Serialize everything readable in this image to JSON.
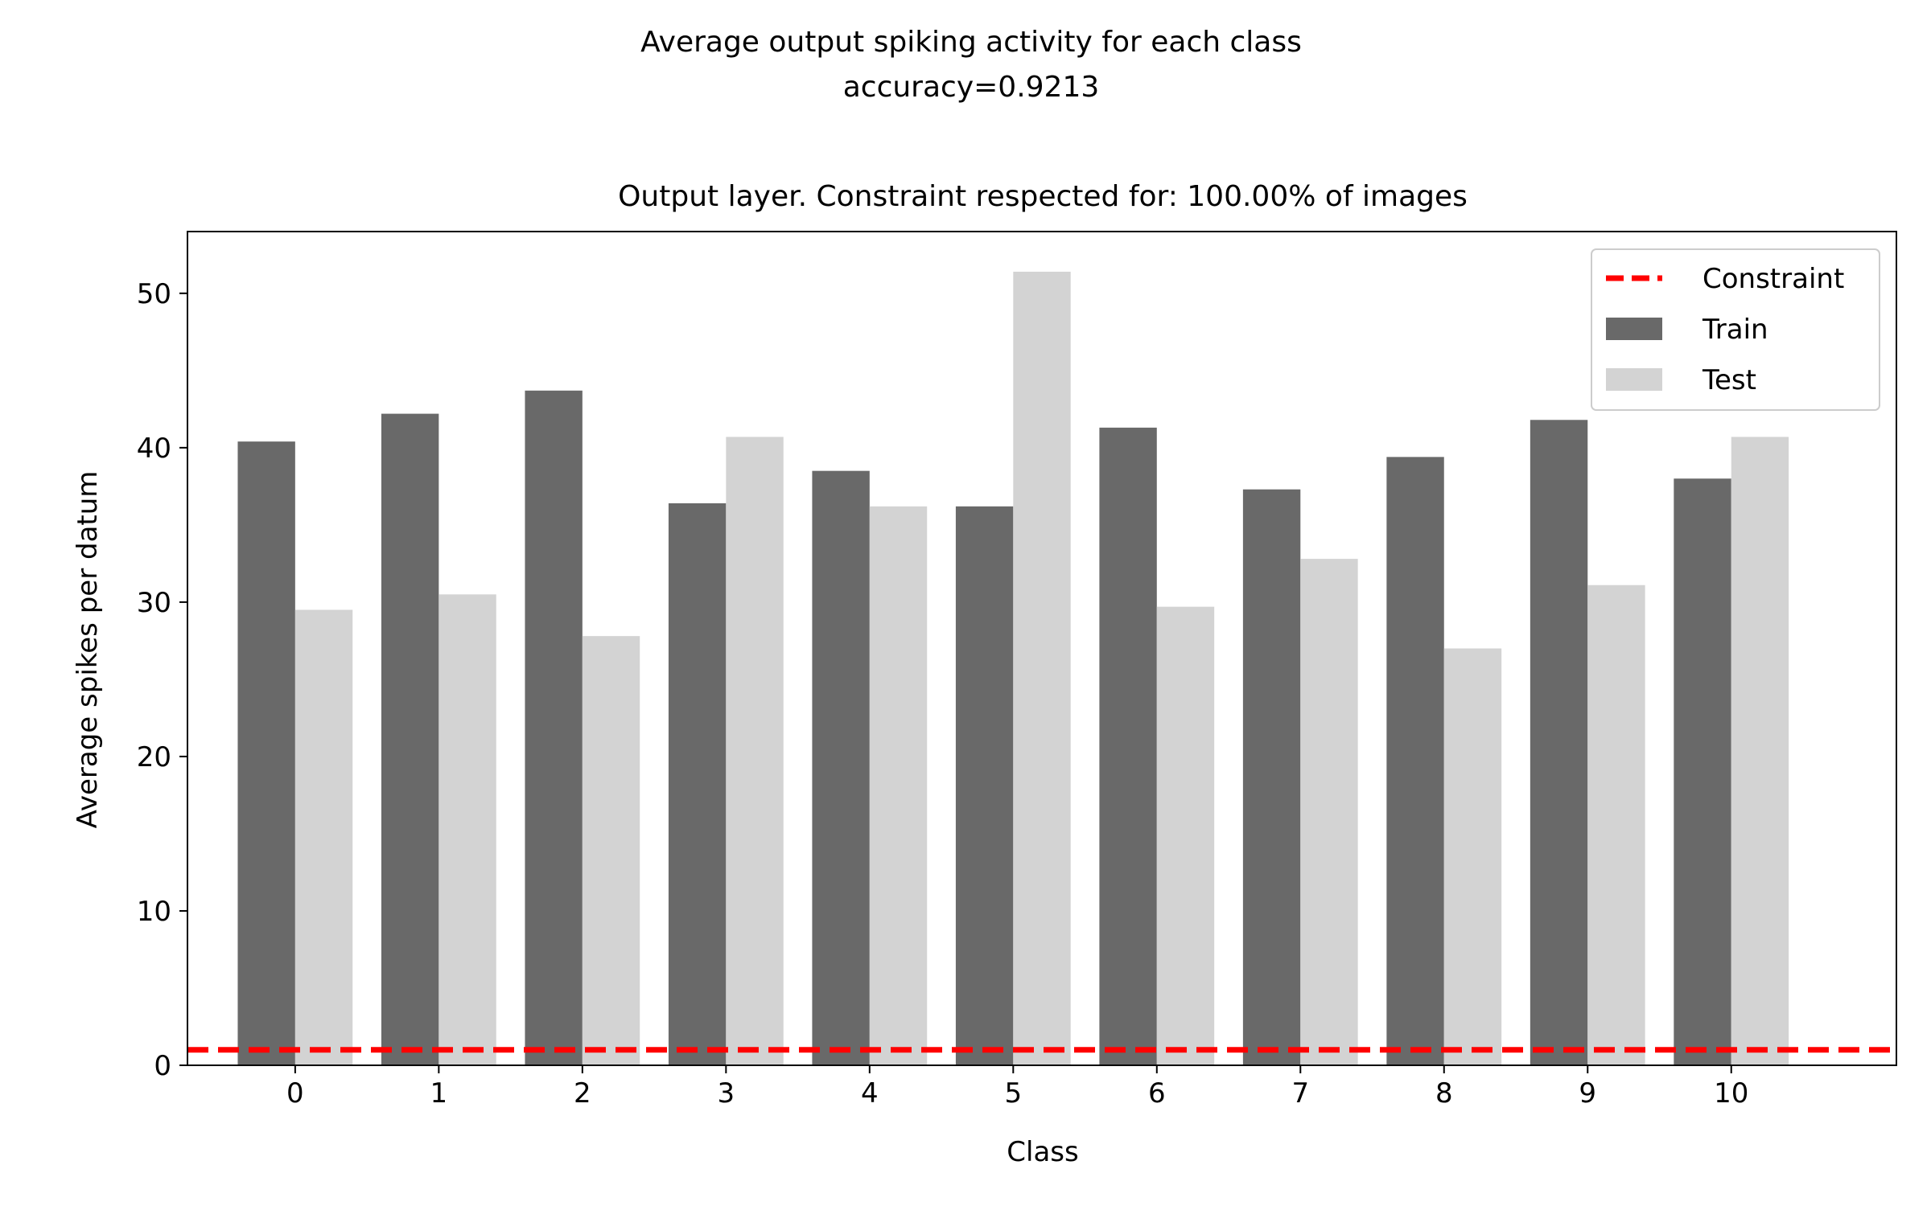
{
  "figure": {
    "suptitle_line1": "Average output spiking activity for each class",
    "suptitle_line2": "accuracy=0.9213"
  },
  "chart_data": {
    "type": "bar",
    "title": "Output layer. Constraint respected for: 100.00% of images",
    "xlabel": "Class",
    "ylabel": "Average spikes per datum",
    "categories": [
      "0",
      "1",
      "2",
      "3",
      "4",
      "5",
      "6",
      "7",
      "8",
      "9",
      "10"
    ],
    "series": [
      {
        "name": "Train",
        "color": "#696969",
        "values": [
          40.4,
          42.2,
          43.7,
          36.4,
          38.5,
          36.2,
          41.3,
          37.3,
          39.4,
          41.8,
          38.0
        ]
      },
      {
        "name": "Test",
        "color": "#d3d3d3",
        "values": [
          29.5,
          30.5,
          27.8,
          40.7,
          36.2,
          51.4,
          29.7,
          32.8,
          27.0,
          31.1,
          40.7
        ]
      }
    ],
    "constraint": {
      "name": "Constraint",
      "value": 1,
      "color": "#ff0000",
      "style": "dashed"
    },
    "ylim": [
      0,
      54
    ],
    "yticks": [
      0,
      10,
      20,
      30,
      40,
      50
    ],
    "xlim": [
      -0.75,
      11.15
    ],
    "grid": false,
    "legend_position": "top-right",
    "legend_order": [
      "Constraint",
      "Train",
      "Test"
    ]
  }
}
